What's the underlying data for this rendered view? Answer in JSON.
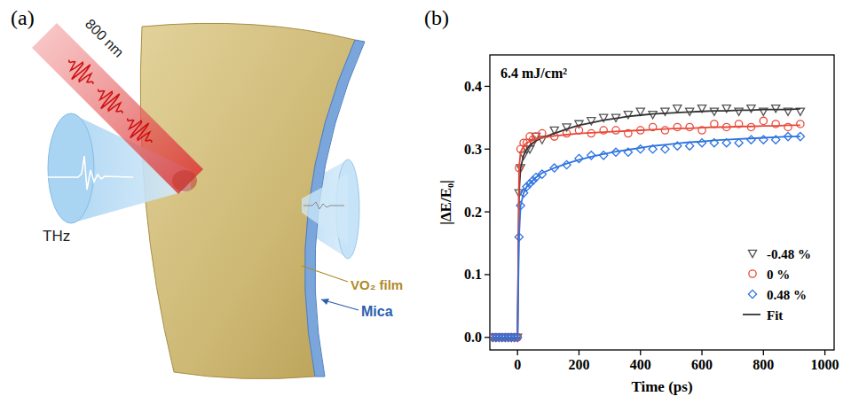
{
  "diagram": {
    "label": "(a)",
    "pump": "800 nm",
    "probe": "THz",
    "film": "VO₂ film",
    "substrate": "Mica"
  },
  "chart_data": {
    "type": "scatter",
    "panel_label": "(b)",
    "annotation": "6.4 mJ/cm²",
    "x_label": "Time (ps)",
    "y_label": "|ΔE/E₀|",
    "xlim": [
      -90,
      1030
    ],
    "ylim": [
      -0.02,
      0.45
    ],
    "xticks": [
      0,
      200,
      400,
      600,
      800,
      1000
    ],
    "yticks": [
      {
        "value": 0,
        "label": "0.0"
      },
      0.1,
      0.2,
      0.3,
      0.4
    ],
    "legend": "lower right",
    "x": [
      -80,
      -70,
      -60,
      -50,
      -40,
      -30,
      -20,
      -10,
      0,
      5,
      10,
      20,
      30,
      40,
      50,
      60,
      80,
      120,
      160,
      200,
      240,
      280,
      320,
      360,
      400,
      440,
      480,
      520,
      560,
      600,
      640,
      680,
      720,
      760,
      800,
      840,
      880,
      920
    ],
    "series": [
      {
        "name": "-0.48 %",
        "color": "#555555",
        "marker": "triangle-down",
        "values": [
          0,
          0,
          0,
          0,
          0,
          0,
          0,
          0,
          0,
          0.23,
          0.27,
          0.29,
          0.3,
          0.3,
          0.31,
          0.32,
          0.315,
          0.33,
          0.335,
          0.34,
          0.345,
          0.35,
          0.35,
          0.355,
          0.36,
          0.355,
          0.36,
          0.365,
          0.36,
          0.365,
          0.36,
          0.365,
          0.36,
          0.365,
          0.36,
          0.365,
          0.36,
          0.36
        ],
        "fit": [
          0,
          0,
          0,
          0,
          0,
          0,
          0,
          0,
          0,
          0.23,
          0.27,
          0.29,
          0.3,
          0.305,
          0.31,
          0.313,
          0.318,
          0.325,
          0.332,
          0.338,
          0.342,
          0.346,
          0.349,
          0.352,
          0.354,
          0.356,
          0.357,
          0.358,
          0.359,
          0.36,
          0.361,
          0.361,
          0.362,
          0.362,
          0.363,
          0.363,
          0.363,
          0.364
        ]
      },
      {
        "name": "0 %",
        "color": "#e8493a",
        "marker": "circle",
        "values": [
          0,
          0,
          0,
          0,
          0,
          0,
          0,
          0,
          0,
          0.27,
          0.3,
          0.31,
          0.31,
          0.32,
          0.315,
          0.32,
          0.325,
          0.32,
          0.325,
          0.33,
          0.325,
          0.33,
          0.33,
          0.325,
          0.33,
          0.335,
          0.33,
          0.335,
          0.335,
          0.33,
          0.34,
          0.335,
          0.34,
          0.335,
          0.345,
          0.34,
          0.335,
          0.34
        ],
        "fit": [
          0,
          0,
          0,
          0,
          0,
          0,
          0,
          0,
          0,
          0.27,
          0.295,
          0.305,
          0.31,
          0.312,
          0.314,
          0.316,
          0.318,
          0.321,
          0.323,
          0.325,
          0.326,
          0.327,
          0.328,
          0.329,
          0.33,
          0.331,
          0.332,
          0.333,
          0.333,
          0.334,
          0.335,
          0.335,
          0.336,
          0.336,
          0.337,
          0.337,
          0.338,
          0.338
        ]
      },
      {
        "name": "0.48 %",
        "color": "#2e73e0",
        "marker": "diamond",
        "values": [
          0,
          0,
          0,
          0,
          0,
          0,
          0,
          0,
          0,
          0.16,
          0.21,
          0.23,
          0.24,
          0.245,
          0.25,
          0.255,
          0.26,
          0.27,
          0.275,
          0.285,
          0.29,
          0.29,
          0.295,
          0.295,
          0.3,
          0.3,
          0.3,
          0.305,
          0.305,
          0.31,
          0.31,
          0.31,
          0.31,
          0.315,
          0.315,
          0.315,
          0.32,
          0.32
        ],
        "fit": [
          0,
          0,
          0,
          0,
          0,
          0,
          0,
          0,
          0,
          0.16,
          0.21,
          0.23,
          0.24,
          0.245,
          0.25,
          0.255,
          0.262,
          0.27,
          0.277,
          0.283,
          0.288,
          0.292,
          0.296,
          0.299,
          0.302,
          0.305,
          0.307,
          0.309,
          0.311,
          0.312,
          0.314,
          0.315,
          0.316,
          0.317,
          0.318,
          0.319,
          0.32,
          0.32
        ]
      }
    ],
    "fit_legend": {
      "name": "Fit",
      "color": "#333333",
      "line_style": "solid"
    }
  }
}
